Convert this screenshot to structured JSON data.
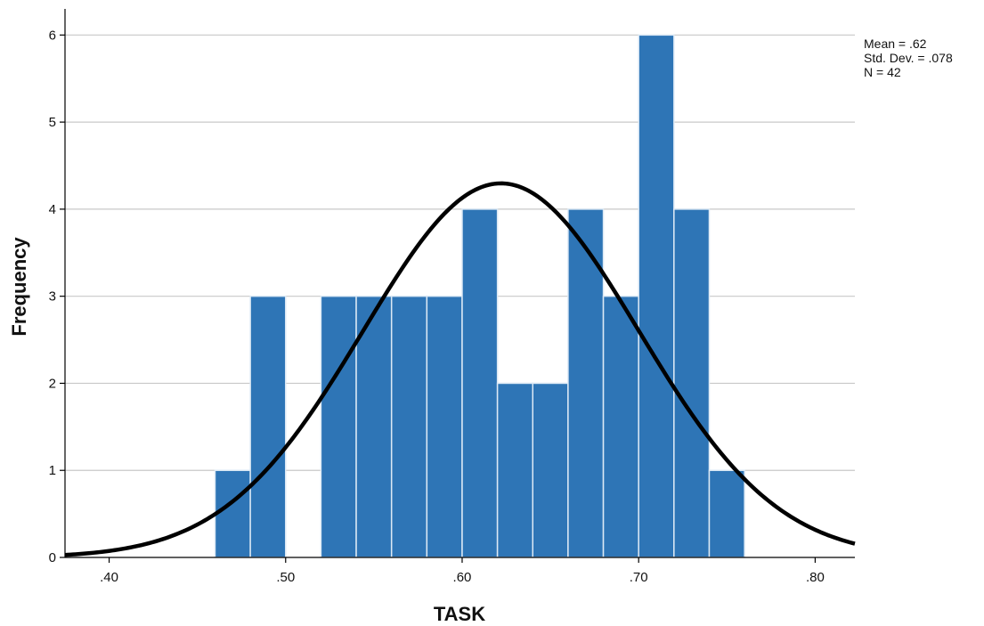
{
  "chart_data": {
    "type": "bar",
    "subtype": "histogram-with-normal-curve",
    "xlabel": "TASK",
    "ylabel": "Frequency",
    "xlim": [
      0.375,
      0.8225
    ],
    "ylim": [
      0,
      6.3
    ],
    "x_ticks": [
      0.4,
      0.5,
      0.6,
      0.7,
      0.8
    ],
    "x_tick_labels": [
      ".40",
      ".50",
      ".60",
      ".70",
      ".80"
    ],
    "y_ticks": [
      0,
      1,
      2,
      3,
      4,
      5,
      6
    ],
    "y_tick_labels": [
      "0",
      "1",
      "2",
      "3",
      "4",
      "5",
      "6"
    ],
    "grid": "horizontal",
    "bin_width": 0.02,
    "bins": [
      {
        "start": 0.46,
        "end": 0.48,
        "count": 1
      },
      {
        "start": 0.48,
        "end": 0.5,
        "count": 3
      },
      {
        "start": 0.5,
        "end": 0.52,
        "count": 0
      },
      {
        "start": 0.52,
        "end": 0.54,
        "count": 3
      },
      {
        "start": 0.54,
        "end": 0.56,
        "count": 3
      },
      {
        "start": 0.56,
        "end": 0.58,
        "count": 3
      },
      {
        "start": 0.58,
        "end": 0.6,
        "count": 3
      },
      {
        "start": 0.6,
        "end": 0.62,
        "count": 4
      },
      {
        "start": 0.62,
        "end": 0.64,
        "count": 2
      },
      {
        "start": 0.64,
        "end": 0.66,
        "count": 2
      },
      {
        "start": 0.66,
        "end": 0.68,
        "count": 4
      },
      {
        "start": 0.68,
        "end": 0.7,
        "count": 3
      },
      {
        "start": 0.7,
        "end": 0.72,
        "count": 6
      },
      {
        "start": 0.72,
        "end": 0.74,
        "count": 4
      },
      {
        "start": 0.74,
        "end": 0.76,
        "count": 1
      }
    ],
    "normal_curve": {
      "mean": 0.622,
      "sd": 0.078,
      "n": 42
    },
    "stats": {
      "mean_label": "Mean = .62",
      "sd_label": "Std. Dev. = .078",
      "n_label": "N = 42"
    },
    "legend_position": "top-right",
    "colors": {
      "bar_fill": "#2e75b6",
      "bar_edge": "#dce9f5",
      "curve": "#000000",
      "grid": "#c8c8c8",
      "axis": "#000000"
    }
  }
}
